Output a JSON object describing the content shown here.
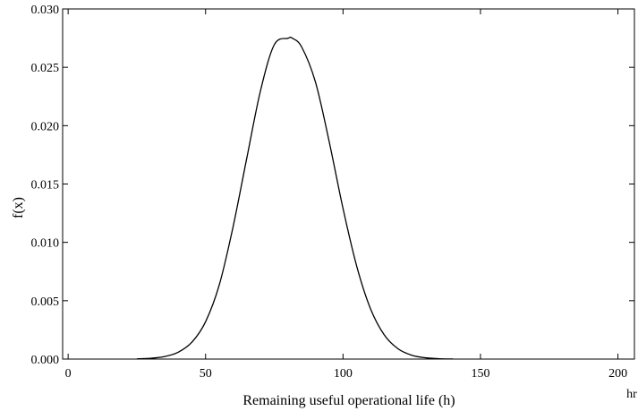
{
  "chart_data": {
    "type": "line",
    "title": "",
    "xlabel": "Remaining useful operational life (h)",
    "ylabel": "f(x)",
    "x_unit": "hr",
    "xlim": [
      -2,
      206
    ],
    "ylim": [
      0,
      0.03
    ],
    "xticks": [
      0,
      50,
      100,
      150,
      200
    ],
    "xtick_labels": [
      "0",
      "50",
      "100",
      "150",
      "200"
    ],
    "yticks": [
      0,
      0.005,
      0.01,
      0.015,
      0.02,
      0.025,
      0.03
    ],
    "ytick_labels": [
      "0.000",
      "0.005",
      "0.010",
      "0.015",
      "0.020",
      "0.025",
      "0.030"
    ],
    "grid": false,
    "legend": "none",
    "line_color": "#000000",
    "series": [
      {
        "x": [
          25,
          30,
          35,
          40,
          45,
          50,
          55,
          60,
          65,
          70,
          75,
          80,
          81.5,
          85,
          90,
          95,
          100,
          105,
          110,
          115,
          120,
          125,
          130,
          135,
          140
        ],
        "values": [
          2e-05,
          7e-05,
          0.00021,
          0.00058,
          0.00144,
          0.0032,
          0.00637,
          0.01133,
          0.01723,
          0.02302,
          0.02694,
          0.02749,
          0.0275,
          0.02672,
          0.02371,
          0.01859,
          0.0129,
          0.00794,
          0.00431,
          0.00207,
          0.00088,
          0.00033,
          0.00011,
          3e-05,
          1e-05
        ]
      }
    ]
  }
}
